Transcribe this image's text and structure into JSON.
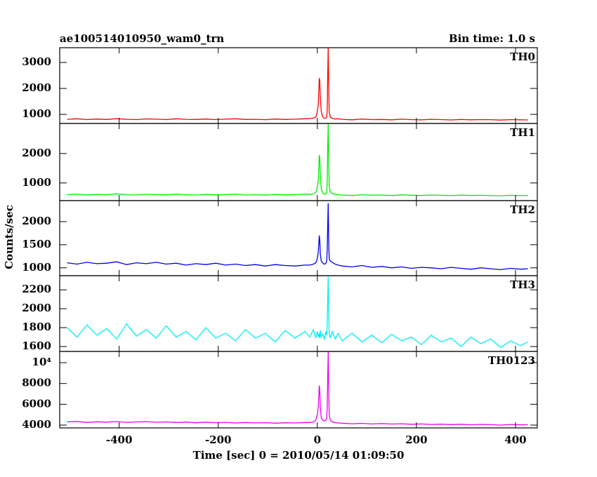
{
  "chart_data": {
    "type": "line",
    "title": "ae100514010950_wam0_trn",
    "subtitle": "Bin time: 1.0 s",
    "x_label": "Time [sec] 0 = 2010/05/14 01:09:50",
    "y_label": "Counts/sec",
    "xlim": [
      -520,
      444
    ],
    "xticks": [
      -400,
      -200,
      0,
      200,
      400
    ],
    "x": [
      -505,
      -485,
      -465,
      -445,
      -425,
      -405,
      -385,
      -365,
      -345,
      -325,
      -305,
      -285,
      -265,
      -245,
      -225,
      -205,
      -185,
      -165,
      -145,
      -125,
      -105,
      -85,
      -65,
      -45,
      -25,
      -15,
      -8,
      -3,
      0,
      2,
      4,
      5,
      6,
      8,
      11,
      14,
      17,
      19,
      20,
      21,
      22,
      23,
      24,
      26,
      30,
      36,
      42,
      50,
      70,
      90,
      110,
      130,
      150,
      170,
      190,
      210,
      230,
      250,
      270,
      290,
      310,
      330,
      350,
      370,
      390,
      410,
      425
    ],
    "series": [
      {
        "name": "TH0",
        "color": "#ff0000",
        "ylim": [
          650,
          3570
        ],
        "yticks": [
          1000,
          2000,
          3000
        ],
        "values": [
          810,
          830,
          800,
          820,
          805,
          835,
          810,
          800,
          825,
          815,
          800,
          830,
          810,
          805,
          820,
          800,
          815,
          830,
          805,
          810,
          795,
          820,
          805,
          815,
          830,
          840,
          860,
          900,
          1100,
          1400,
          2400,
          2300,
          1700,
          1100,
          900,
          850,
          850,
          900,
          1200,
          2500,
          3560,
          2200,
          1100,
          900,
          850,
          820,
          830,
          810,
          790,
          820,
          800,
          805,
          790,
          815,
          800,
          790,
          810,
          800,
          785,
          805,
          790,
          800,
          795,
          780,
          800,
          790,
          785
        ]
      },
      {
        "name": "TH1",
        "color": "#00ee00",
        "ylim": [
          400,
          3020
        ],
        "yticks": [
          1000,
          2000
        ],
        "values": [
          600,
          620,
          590,
          610,
          600,
          630,
          600,
          590,
          615,
          605,
          595,
          620,
          600,
          590,
          610,
          595,
          605,
          620,
          590,
          600,
          585,
          610,
          595,
          605,
          620,
          610,
          630,
          680,
          850,
          1100,
          1950,
          1850,
          1300,
          800,
          650,
          620,
          630,
          700,
          1000,
          2200,
          3000,
          1900,
          900,
          700,
          640,
          610,
          600,
          590,
          575,
          600,
          585,
          590,
          575,
          595,
          580,
          575,
          590,
          580,
          570,
          585,
          575,
          580,
          570,
          565,
          580,
          570,
          575
        ]
      },
      {
        "name": "TH2",
        "color": "#0000ee",
        "ylim": [
          830,
          2455
        ],
        "yticks": [
          1000,
          1500,
          2000
        ],
        "values": [
          1110,
          1080,
          1120,
          1090,
          1100,
          1130,
          1070,
          1110,
          1090,
          1120,
          1080,
          1100,
          1060,
          1090,
          1070,
          1100,
          1060,
          1080,
          1050,
          1070,
          1040,
          1070,
          1050,
          1040,
          1060,
          1060,
          1080,
          1110,
          1200,
          1350,
          1700,
          1600,
          1300,
          1150,
          1100,
          1080,
          1090,
          1150,
          1400,
          1900,
          2400,
          1600,
          1200,
          1150,
          1120,
          1080,
          1060,
          1040,
          1020,
          1050,
          1010,
          1030,
          1000,
          1020,
          990,
          1010,
          1000,
          980,
          1010,
          990,
          970,
          1000,
          980,
          960,
          990,
          970,
          980
        ]
      },
      {
        "name": "TH3",
        "color": "#00f0f0",
        "ylim": [
          1548,
          2350
        ],
        "yticks": [
          1600,
          1800,
          2000,
          2200
        ],
        "values": [
          1800,
          1700,
          1830,
          1720,
          1790,
          1680,
          1840,
          1710,
          1780,
          1690,
          1820,
          1700,
          1760,
          1670,
          1800,
          1690,
          1740,
          1660,
          1780,
          1690,
          1740,
          1650,
          1770,
          1690,
          1760,
          1700,
          1780,
          1690,
          1760,
          1700,
          1740,
          1690,
          1770,
          1700,
          1730,
          1680,
          1750,
          1720,
          1850,
          2100,
          2340,
          1950,
          1750,
          1690,
          1760,
          1680,
          1740,
          1660,
          1740,
          1650,
          1720,
          1640,
          1730,
          1660,
          1700,
          1620,
          1720,
          1650,
          1690,
          1600,
          1700,
          1630,
          1680,
          1590,
          1660,
          1610,
          1650
        ]
      },
      {
        "name": "TH0123",
        "color": "#ee00ee",
        "ylim": [
          3730,
          11080
        ],
        "yticks": [
          4000,
          6000,
          8000,
          {
            "value": 10000,
            "label": "10⁴"
          }
        ],
        "values": [
          4300,
          4350,
          4250,
          4320,
          4280,
          4340,
          4260,
          4300,
          4330,
          4270,
          4300,
          4250,
          4290,
          4220,
          4280,
          4230,
          4260,
          4200,
          4250,
          4210,
          4230,
          4180,
          4220,
          4200,
          4250,
          4250,
          4300,
          4500,
          5000,
          5800,
          7800,
          7400,
          5800,
          4700,
          4500,
          4400,
          4450,
          4700,
          5800,
          8500,
          11050,
          7800,
          5000,
          4500,
          4300,
          4250,
          4200,
          4180,
          4130,
          4170,
          4110,
          4150,
          4100,
          4130,
          4080,
          4110,
          4060,
          4090,
          4050,
          4080,
          4030,
          4070,
          4040,
          4000,
          4060,
          4020,
          4040
        ]
      }
    ]
  }
}
